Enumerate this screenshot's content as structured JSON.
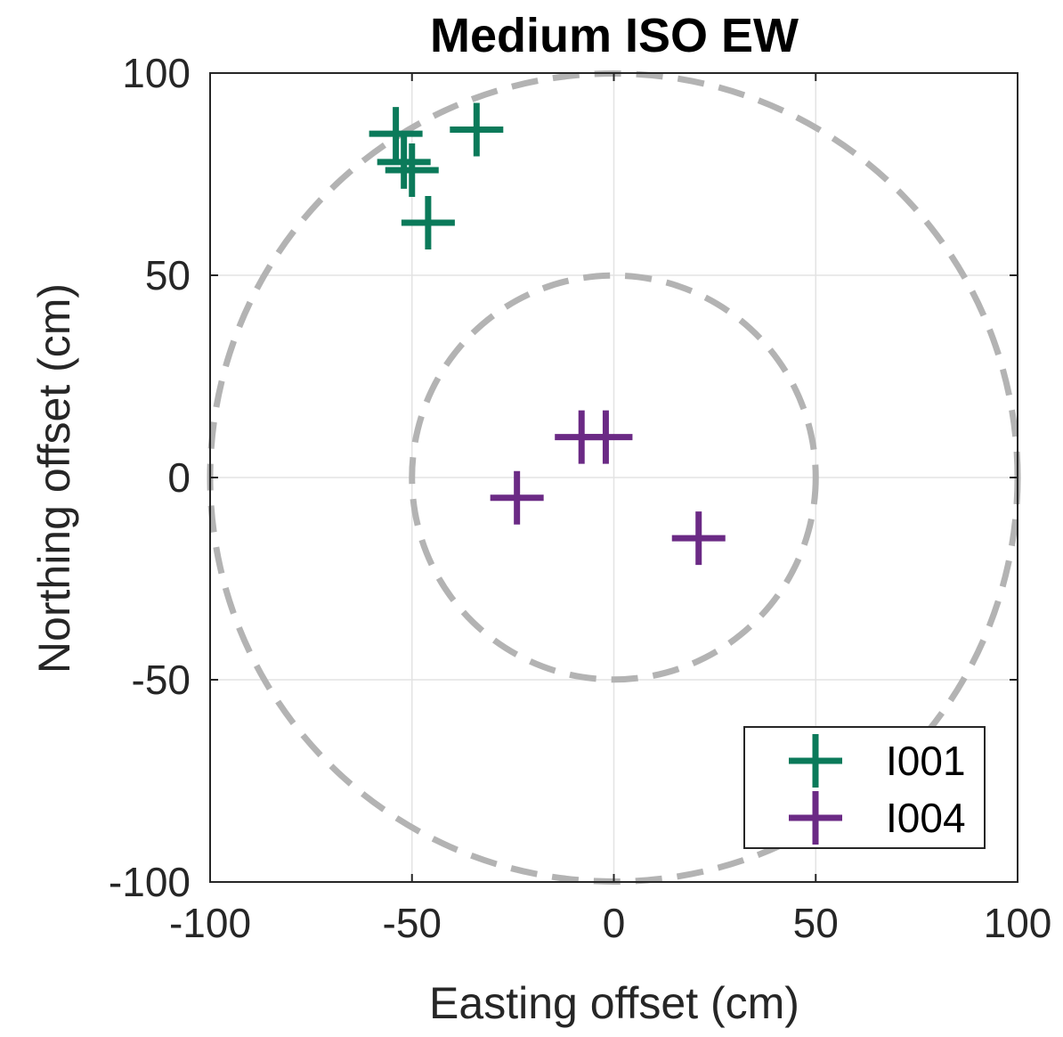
{
  "chart_data": {
    "type": "scatter",
    "title": "Medium ISO EW",
    "xlabel": "Easting offset (cm)",
    "ylabel": "Northing offset (cm)",
    "xlim": [
      -100,
      100
    ],
    "ylim": [
      -100,
      100
    ],
    "xticks": [
      -100,
      -50,
      0,
      50,
      100
    ],
    "yticks": [
      -100,
      -50,
      0,
      50,
      100
    ],
    "xtick_labels": [
      "-100",
      "-50",
      "0",
      "50",
      "100"
    ],
    "ytick_labels": [
      "-100",
      "-50",
      "0",
      "50",
      "100"
    ],
    "grid": true,
    "legend_position": "bottom-right",
    "reference_circles": [
      {
        "radius": 50,
        "color": "#b3b3b3",
        "style": "dashed"
      },
      {
        "radius": 100,
        "color": "#b3b3b3",
        "style": "dashed"
      }
    ],
    "series": [
      {
        "name": "I001",
        "marker": "plus",
        "color": "#0b7a5a",
        "points": [
          {
            "x": -54,
            "y": 85
          },
          {
            "x": -34,
            "y": 86
          },
          {
            "x": -52,
            "y": 78
          },
          {
            "x": -50,
            "y": 76
          },
          {
            "x": -46,
            "y": 63
          }
        ]
      },
      {
        "name": "I004",
        "marker": "plus",
        "color": "#6b2a85",
        "points": [
          {
            "x": -8,
            "y": 10
          },
          {
            "x": -2,
            "y": 10
          },
          {
            "x": -24,
            "y": -5
          },
          {
            "x": 21,
            "y": -15
          }
        ]
      }
    ]
  }
}
